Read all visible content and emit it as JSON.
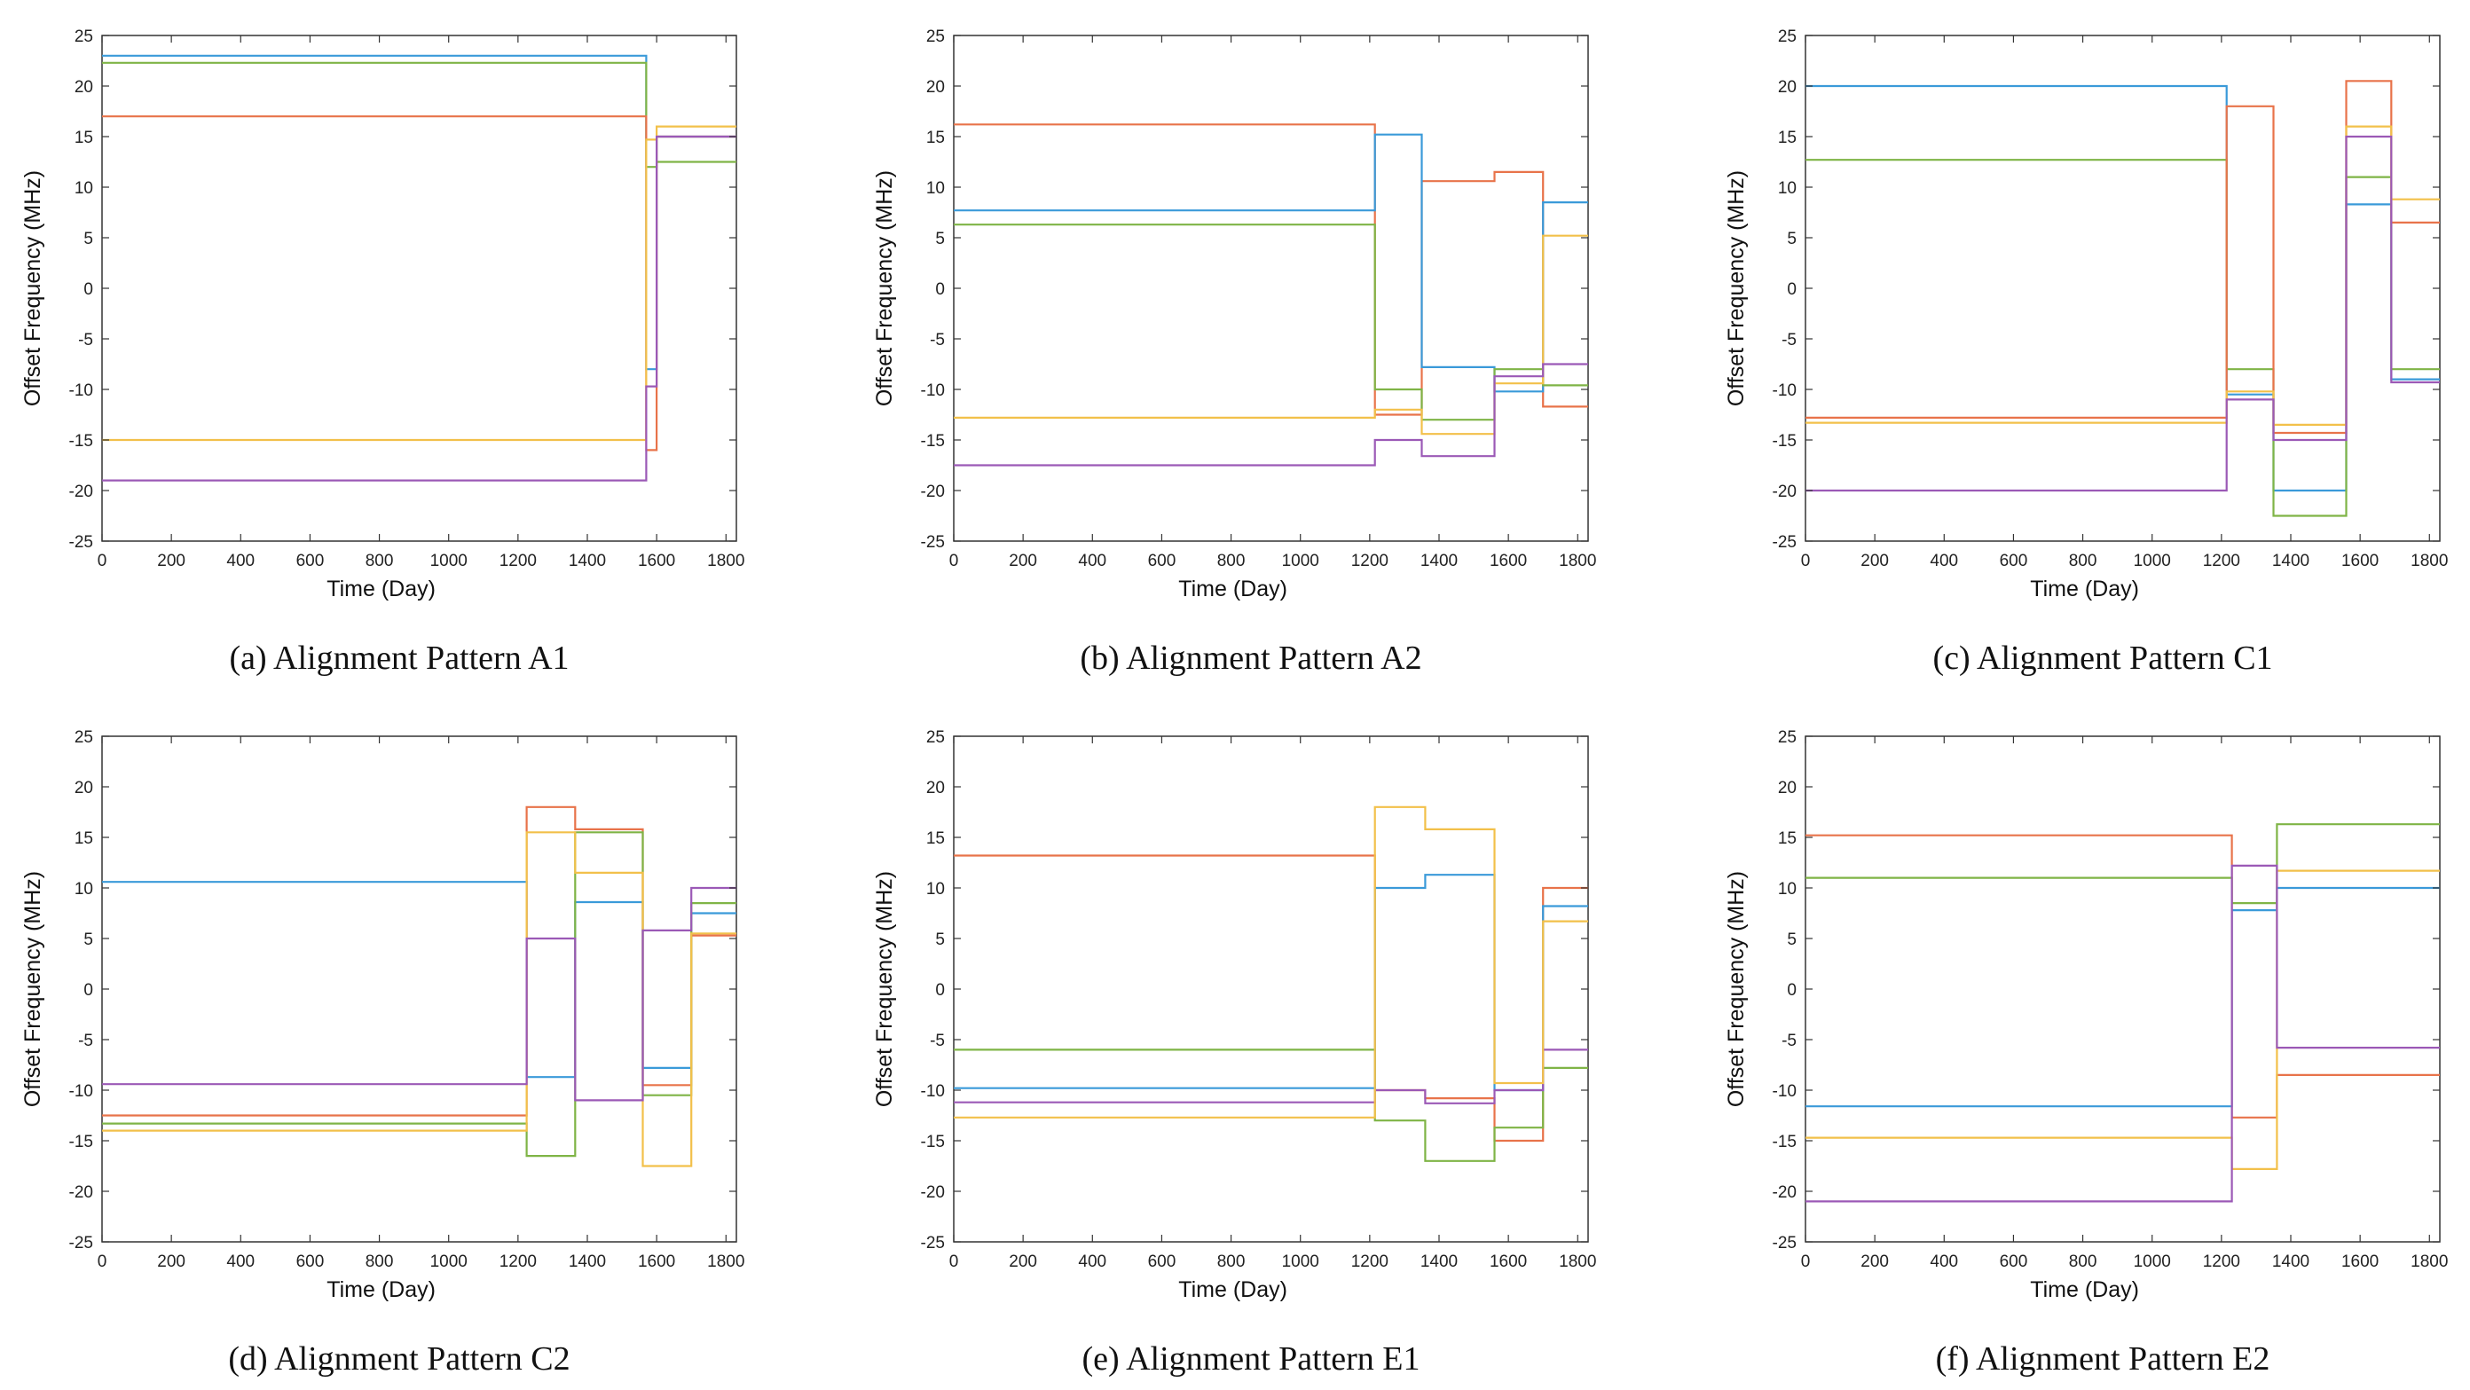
{
  "colors": {
    "blue": "#3a9ad9",
    "orange": "#e8734a",
    "yellow": "#f2c04a",
    "purple": "#9b59b6",
    "green": "#7fb446",
    "axis": "#333333"
  },
  "chart_data": [
    {
      "type": "line",
      "caption": "(a) Alignment Pattern A1",
      "xlabel": "Time  (Day)",
      "ylabel": "Offset Frequency  (MHz)",
      "xlim": [
        0,
        1830
      ],
      "ylim": [
        -25,
        25
      ],
      "xticks": [
        "0",
        "200",
        "400",
        "600",
        "800",
        "1000",
        "1200",
        "1400",
        "1600",
        "1800"
      ],
      "yticks": [
        "25",
        "20",
        "15",
        "10",
        "5",
        "0",
        "-5",
        "-10",
        "-15",
        "-20",
        "-25"
      ],
      "series": [
        {
          "name": "blue",
          "x": [
            0,
            1570,
            1570,
            1600,
            1600,
            1830
          ],
          "y": [
            23,
            23,
            -8,
            -8,
            15,
            15
          ]
        },
        {
          "name": "green",
          "x": [
            0,
            1570,
            1570,
            1600,
            1600,
            1830
          ],
          "y": [
            22.3,
            22.3,
            12,
            12,
            12.5,
            12.5
          ]
        },
        {
          "name": "orange",
          "x": [
            0,
            1570,
            1570,
            1600,
            1600,
            1830
          ],
          "y": [
            17,
            17,
            -16,
            -16,
            15,
            15
          ]
        },
        {
          "name": "yellow",
          "x": [
            0,
            1570,
            1570,
            1600,
            1600,
            1830
          ],
          "y": [
            -15,
            -15,
            14.7,
            14.7,
            16,
            16
          ]
        },
        {
          "name": "purple",
          "x": [
            0,
            1570,
            1570,
            1600,
            1600,
            1830
          ],
          "y": [
            -19,
            -19,
            -9.7,
            -9.7,
            15,
            15
          ]
        }
      ]
    },
    {
      "type": "line",
      "caption": "(b) Alignment Pattern A2",
      "xlabel": "Time  (Day)",
      "ylabel": "Offset Frequency  (MHz)",
      "xlim": [
        0,
        1830
      ],
      "ylim": [
        -25,
        25
      ],
      "xticks": [
        "0",
        "200",
        "400",
        "600",
        "800",
        "1000",
        "1200",
        "1400",
        "1600",
        "1800"
      ],
      "yticks": [
        "25",
        "20",
        "15",
        "10",
        "5",
        "0",
        "-5",
        "-10",
        "-15",
        "-20",
        "-25"
      ],
      "series": [
        {
          "name": "orange",
          "x": [
            0,
            1215,
            1215,
            1350,
            1350,
            1560,
            1560,
            1700,
            1700,
            1830
          ],
          "y": [
            16.2,
            16.2,
            -12.5,
            -12.5,
            10.6,
            10.6,
            11.5,
            11.5,
            -11.7,
            -11.7
          ]
        },
        {
          "name": "blue",
          "x": [
            0,
            1215,
            1215,
            1350,
            1350,
            1560,
            1560,
            1700,
            1700,
            1830
          ],
          "y": [
            7.7,
            7.7,
            15.2,
            15.2,
            -7.8,
            -7.8,
            -10.2,
            -10.2,
            8.5,
            8.5
          ]
        },
        {
          "name": "green",
          "x": [
            0,
            1215,
            1215,
            1350,
            1350,
            1560,
            1560,
            1700,
            1700,
            1830
          ],
          "y": [
            6.3,
            6.3,
            -10,
            -10,
            -13,
            -13,
            -8,
            -8,
            -9.6,
            -9.6
          ]
        },
        {
          "name": "yellow",
          "x": [
            0,
            1215,
            1215,
            1350,
            1350,
            1560,
            1560,
            1700,
            1700,
            1830
          ],
          "y": [
            -12.8,
            -12.8,
            -12,
            -12,
            -14.4,
            -14.4,
            -9.4,
            -9.4,
            5.2,
            5.2
          ]
        },
        {
          "name": "purple",
          "x": [
            0,
            1215,
            1215,
            1350,
            1350,
            1560,
            1560,
            1700,
            1700,
            1830
          ],
          "y": [
            -17.5,
            -17.5,
            -15,
            -15,
            -16.6,
            -16.6,
            -8.7,
            -8.7,
            -7.5,
            -7.5
          ]
        }
      ]
    },
    {
      "type": "line",
      "caption": "(c) Alignment Pattern C1",
      "xlabel": "Time  (Day)",
      "ylabel": "Offset Frequency  (MHz)",
      "xlim": [
        0,
        1830
      ],
      "ylim": [
        -25,
        25
      ],
      "xticks": [
        "0",
        "200",
        "400",
        "600",
        "800",
        "1000",
        "1200",
        "1400",
        "1600",
        "1800"
      ],
      "yticks": [
        "25",
        "20",
        "15",
        "10",
        "5",
        "0",
        "-5",
        "-10",
        "-15",
        "-20",
        "-25"
      ],
      "series": [
        {
          "name": "blue",
          "x": [
            0,
            1215,
            1215,
            1350,
            1350,
            1560,
            1560,
            1690,
            1690,
            1830
          ],
          "y": [
            20,
            20,
            -10.5,
            -10.5,
            -20,
            -20,
            8.3,
            8.3,
            -9,
            -9
          ]
        },
        {
          "name": "green",
          "x": [
            0,
            1215,
            1215,
            1350,
            1350,
            1560,
            1560,
            1690,
            1690,
            1830
          ],
          "y": [
            12.7,
            12.7,
            -8,
            -8,
            -22.5,
            -22.5,
            11,
            11,
            -8,
            -8
          ]
        },
        {
          "name": "orange",
          "x": [
            0,
            1215,
            1215,
            1350,
            1350,
            1560,
            1560,
            1690,
            1690,
            1830
          ],
          "y": [
            -12.8,
            -12.8,
            18,
            18,
            -14.3,
            -14.3,
            20.5,
            20.5,
            6.5,
            6.5
          ]
        },
        {
          "name": "yellow",
          "x": [
            0,
            1215,
            1215,
            1350,
            1350,
            1560,
            1560,
            1690,
            1690,
            1830
          ],
          "y": [
            -13.3,
            -13.3,
            -10.2,
            -10.2,
            -13.5,
            -13.5,
            16,
            16,
            8.8,
            8.8
          ]
        },
        {
          "name": "purple",
          "x": [
            0,
            1215,
            1215,
            1350,
            1350,
            1560,
            1560,
            1690,
            1690,
            1830
          ],
          "y": [
            -20,
            -20,
            -11,
            -11,
            -15,
            -15,
            15,
            15,
            -9.3,
            -9.3
          ]
        }
      ]
    },
    {
      "type": "line",
      "caption": "(d) Alignment Pattern C2",
      "xlabel": "Time  (Day)",
      "ylabel": "Offset Frequency  (MHz)",
      "xlim": [
        0,
        1830
      ],
      "ylim": [
        -25,
        25
      ],
      "xticks": [
        "0",
        "200",
        "400",
        "600",
        "800",
        "1000",
        "1200",
        "1400",
        "1600",
        "1800"
      ],
      "yticks": [
        "25",
        "20",
        "15",
        "10",
        "5",
        "0",
        "-5",
        "-10",
        "-15",
        "-20",
        "-25"
      ],
      "series": [
        {
          "name": "blue",
          "x": [
            0,
            1225,
            1225,
            1365,
            1365,
            1560,
            1560,
            1700,
            1700,
            1830
          ],
          "y": [
            10.6,
            10.6,
            -8.7,
            -8.7,
            8.6,
            8.6,
            -7.8,
            -7.8,
            7.5,
            7.5
          ]
        },
        {
          "name": "orange",
          "x": [
            0,
            1225,
            1225,
            1365,
            1365,
            1560,
            1560,
            1700,
            1700,
            1830
          ],
          "y": [
            -12.5,
            -12.5,
            18,
            18,
            15.8,
            15.8,
            -9.5,
            -9.5,
            5.3,
            5.3
          ]
        },
        {
          "name": "green",
          "x": [
            0,
            1225,
            1225,
            1365,
            1365,
            1560,
            1560,
            1700,
            1700,
            1830
          ],
          "y": [
            -13.3,
            -13.3,
            -16.5,
            -16.5,
            15.5,
            15.5,
            -10.5,
            -10.5,
            8.5,
            8.5
          ]
        },
        {
          "name": "yellow",
          "x": [
            0,
            1225,
            1225,
            1365,
            1365,
            1560,
            1560,
            1700,
            1700,
            1830
          ],
          "y": [
            -14,
            -14,
            15.5,
            15.5,
            11.5,
            11.5,
            -17.5,
            -17.5,
            5.5,
            5.5
          ]
        },
        {
          "name": "purple",
          "x": [
            0,
            1225,
            1225,
            1365,
            1365,
            1560,
            1560,
            1700,
            1700,
            1830
          ],
          "y": [
            -9.4,
            -9.4,
            5,
            5,
            -11,
            -11,
            5.8,
            5.8,
            10,
            10
          ]
        }
      ]
    },
    {
      "type": "line",
      "caption": "(e) Alignment Pattern E1",
      "xlabel": "Time  (Day)",
      "ylabel": "Offset Frequency  (MHz)",
      "xlim": [
        0,
        1830
      ],
      "ylim": [
        -25,
        25
      ],
      "xticks": [
        "0",
        "200",
        "400",
        "600",
        "800",
        "1000",
        "1200",
        "1400",
        "1600",
        "1800"
      ],
      "yticks": [
        "25",
        "20",
        "15",
        "10",
        "5",
        "0",
        "-5",
        "-10",
        "-15",
        "-20",
        "-25"
      ],
      "series": [
        {
          "name": "orange",
          "x": [
            0,
            1215,
            1215,
            1360,
            1360,
            1560,
            1560,
            1700,
            1700,
            1830
          ],
          "y": [
            13.2,
            13.2,
            -10,
            -10,
            -10.8,
            -10.8,
            -15,
            -15,
            10,
            10
          ]
        },
        {
          "name": "green",
          "x": [
            0,
            1215,
            1215,
            1360,
            1360,
            1560,
            1560,
            1700,
            1700,
            1830
          ],
          "y": [
            -6,
            -6,
            -13,
            -13,
            -17,
            -17,
            -13.7,
            -13.7,
            -7.8,
            -7.8
          ]
        },
        {
          "name": "blue",
          "x": [
            0,
            1215,
            1215,
            1360,
            1360,
            1560,
            1560,
            1700,
            1700,
            1830
          ],
          "y": [
            -9.8,
            -9.8,
            10,
            10,
            11.3,
            11.3,
            -10,
            -10,
            8.2,
            8.2
          ]
        },
        {
          "name": "purple",
          "x": [
            0,
            1215,
            1215,
            1360,
            1360,
            1560,
            1560,
            1700,
            1700,
            1830
          ],
          "y": [
            -11.2,
            -11.2,
            -10,
            -10,
            -11.3,
            -11.3,
            -10,
            -10,
            -6,
            -6
          ]
        },
        {
          "name": "yellow",
          "x": [
            0,
            1215,
            1215,
            1360,
            1360,
            1560,
            1560,
            1700,
            1700,
            1830
          ],
          "y": [
            -12.7,
            -12.7,
            18,
            18,
            15.8,
            15.8,
            -9.3,
            -9.3,
            6.7,
            6.7
          ]
        }
      ]
    },
    {
      "type": "line",
      "caption": "(f) Alignment Pattern E2",
      "xlabel": "Time  (Day)",
      "ylabel": "Offset Frequency  (MHz)",
      "xlim": [
        0,
        1830
      ],
      "ylim": [
        -25,
        25
      ],
      "xticks": [
        "0",
        "200",
        "400",
        "600",
        "800",
        "1000",
        "1200",
        "1400",
        "1600",
        "1800"
      ],
      "yticks": [
        "25",
        "20",
        "15",
        "10",
        "5",
        "0",
        "-5",
        "-10",
        "-15",
        "-20",
        "-25"
      ],
      "series": [
        {
          "name": "orange",
          "x": [
            0,
            1230,
            1230,
            1360,
            1360,
            1830
          ],
          "y": [
            15.2,
            15.2,
            -12.7,
            -12.7,
            -8.5,
            -8.5
          ]
        },
        {
          "name": "green",
          "x": [
            0,
            1230,
            1230,
            1360,
            1360,
            1830
          ],
          "y": [
            11,
            11,
            8.5,
            8.5,
            16.3,
            16.3
          ]
        },
        {
          "name": "blue",
          "x": [
            0,
            1230,
            1230,
            1360,
            1360,
            1830
          ],
          "y": [
            -11.6,
            -11.6,
            7.8,
            7.8,
            10,
            10
          ]
        },
        {
          "name": "yellow",
          "x": [
            0,
            1230,
            1230,
            1360,
            1360,
            1830
          ],
          "y": [
            -14.7,
            -14.7,
            -17.8,
            -17.8,
            11.7,
            11.7
          ]
        },
        {
          "name": "purple",
          "x": [
            0,
            1230,
            1230,
            1360,
            1360,
            1830
          ],
          "y": [
            -21,
            -21,
            12.2,
            12.2,
            -5.8,
            -5.8
          ]
        }
      ]
    }
  ]
}
